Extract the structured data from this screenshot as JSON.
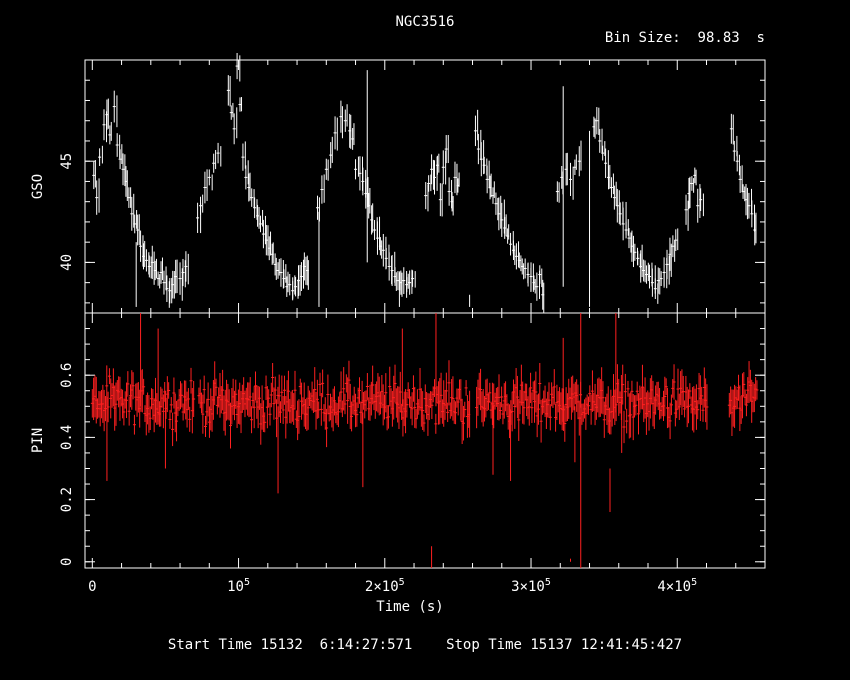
{
  "title": "NGC3516",
  "bin_size_label": "Bin Size:  98.83  s",
  "footer": "Start Time 15132  6:14:27:571    Stop Time 15137 12:41:45:427",
  "colors": {
    "background": "#000000",
    "axes": "#ffffff",
    "gso_series": "#ffffff",
    "pin_series": "#ff2020"
  },
  "chart_data": [
    {
      "type": "scatter",
      "ylabel": "GSO",
      "xlabel": "",
      "xlim": [
        -5000,
        460000
      ],
      "ylim": [
        37.5,
        50
      ],
      "yticks": [
        40,
        45
      ],
      "ytick_labels": [
        "40",
        "45"
      ],
      "grid": false,
      "error_bars": true,
      "series": [
        {
          "color": "#ffffff",
          "points": [
            [
              1000,
              44.3
            ],
            [
              3000,
              43.2
            ],
            [
              5000,
              45.2
            ],
            [
              8000,
              46.8
            ],
            [
              10000,
              47.3
            ],
            [
              12000,
              46.3
            ],
            [
              15000,
              47.7
            ],
            [
              17000,
              45.8
            ],
            [
              19000,
              45.1
            ],
            [
              21000,
              44.6
            ],
            [
              23000,
              44.0
            ],
            [
              25000,
              43.2
            ],
            [
              27000,
              42.4
            ],
            [
              29000,
              41.9
            ],
            [
              31000,
              41.6
            ],
            [
              33000,
              40.8
            ],
            [
              35000,
              40.3
            ],
            [
              37000,
              40.1
            ],
            [
              39000,
              39.8
            ],
            [
              41000,
              40.0
            ],
            [
              43000,
              39.6
            ],
            [
              45000,
              39.2
            ],
            [
              47000,
              39.5
            ],
            [
              49000,
              39.0
            ],
            [
              51000,
              38.7
            ],
            [
              53000,
              38.6
            ],
            [
              55000,
              38.9
            ],
            [
              57000,
              39.3
            ],
            [
              60000,
              39.2
            ],
            [
              62000,
              39.5
            ],
            [
              64000,
              39.8
            ],
            [
              72000,
              42.2
            ],
            [
              74000,
              42.8
            ],
            [
              77000,
              43.7
            ],
            [
              80000,
              44.2
            ],
            [
              83000,
              44.9
            ],
            [
              86000,
              45.4
            ],
            [
              93000,
              48.5
            ],
            [
              95000,
              47.4
            ],
            [
              97000,
              46.6
            ],
            [
              99000,
              49.7
            ],
            [
              101000,
              47.8
            ],
            [
              103000,
              45.2
            ],
            [
              105000,
              44.2
            ],
            [
              107000,
              43.7
            ],
            [
              109000,
              43.2
            ],
            [
              111000,
              42.7
            ],
            [
              113000,
              42.3
            ],
            [
              115000,
              41.9
            ],
            [
              117000,
              41.4
            ],
            [
              119000,
              41.1
            ],
            [
              121000,
              40.7
            ],
            [
              123000,
              40.4
            ],
            [
              125000,
              39.9
            ],
            [
              127000,
              39.6
            ],
            [
              129000,
              39.5
            ],
            [
              131000,
              39.2
            ],
            [
              133000,
              38.8
            ],
            [
              135000,
              38.9
            ],
            [
              137000,
              38.6
            ],
            [
              139000,
              38.8
            ],
            [
              141000,
              39.1
            ],
            [
              143000,
              39.3
            ],
            [
              145000,
              39.8
            ],
            [
              147000,
              39.6
            ],
            [
              154000,
              42.7
            ],
            [
              157000,
              43.6
            ],
            [
              160000,
              44.6
            ],
            [
              163000,
              45.3
            ],
            [
              166000,
              46.4
            ],
            [
              170000,
              47.2
            ],
            [
              173000,
              47.0
            ],
            [
              176000,
              46.5
            ],
            [
              178000,
              46.1
            ],
            [
              180000,
              44.6
            ],
            [
              183000,
              44.4
            ],
            [
              185000,
              44.0
            ],
            [
              187000,
              43.4
            ],
            [
              189000,
              42.8
            ],
            [
              191000,
              42.1
            ],
            [
              193000,
              41.6
            ],
            [
              195000,
              41.2
            ],
            [
              197000,
              40.8
            ],
            [
              199000,
              40.6
            ],
            [
              201000,
              40.2
            ],
            [
              203000,
              39.8
            ],
            [
              205000,
              39.6
            ],
            [
              207000,
              39.3
            ],
            [
              209000,
              39.1
            ],
            [
              211000,
              39.0
            ],
            [
              213000,
              39.1
            ],
            [
              215000,
              38.9
            ],
            [
              217000,
              39.0
            ],
            [
              219000,
              39.2
            ],
            [
              228000,
              43.3
            ],
            [
              230000,
              43.9
            ],
            [
              232000,
              44.6
            ],
            [
              234000,
              44.2
            ],
            [
              236000,
              44.8
            ],
            [
              238000,
              43.1
            ],
            [
              240000,
              44.7
            ],
            [
              242000,
              45.6
            ],
            [
              244000,
              43.5
            ],
            [
              246000,
              43.0
            ],
            [
              248000,
              44.2
            ],
            [
              250000,
              43.8
            ],
            [
              262000,
              46.5
            ],
            [
              264000,
              45.6
            ],
            [
              266000,
              45.1
            ],
            [
              268000,
              44.8
            ],
            [
              270000,
              44.1
            ],
            [
              272000,
              43.7
            ],
            [
              274000,
              43.3
            ],
            [
              276000,
              42.9
            ],
            [
              278000,
              42.4
            ],
            [
              280000,
              42.1
            ],
            [
              282000,
              41.7
            ],
            [
              284000,
              41.3
            ],
            [
              286000,
              40.9
            ],
            [
              288000,
              40.6
            ],
            [
              290000,
              40.3
            ],
            [
              292000,
              40.1
            ],
            [
              294000,
              39.8
            ],
            [
              296000,
              39.7
            ],
            [
              298000,
              39.4
            ],
            [
              300000,
              39.3
            ],
            [
              302000,
              39.0
            ],
            [
              304000,
              38.8
            ],
            [
              306000,
              39.4
            ],
            [
              308000,
              38.4
            ],
            [
              318000,
              43.5
            ],
            [
              321000,
              44.2
            ],
            [
              324000,
              44.6
            ],
            [
              327000,
              44.1
            ],
            [
              330000,
              44.7
            ],
            [
              333000,
              45.0
            ],
            [
              343000,
              46.7
            ],
            [
              345000,
              47.0
            ],
            [
              347000,
              46.0
            ],
            [
              349000,
              45.4
            ],
            [
              351000,
              44.9
            ],
            [
              353000,
              44.2
            ],
            [
              355000,
              43.7
            ],
            [
              357000,
              43.2
            ],
            [
              359000,
              42.8
            ],
            [
              361000,
              42.4
            ],
            [
              363000,
              41.9
            ],
            [
              365000,
              41.6
            ],
            [
              367000,
              41.2
            ],
            [
              369000,
              40.8
            ],
            [
              371000,
              40.5
            ],
            [
              373000,
              40.2
            ],
            [
              375000,
              39.8
            ],
            [
              377000,
              39.6
            ],
            [
              379000,
              39.4
            ],
            [
              381000,
              39.3
            ],
            [
              383000,
              39.0
            ],
            [
              385000,
              38.7
            ],
            [
              387000,
              39.1
            ],
            [
              389000,
              39.2
            ],
            [
              391000,
              39.5
            ],
            [
              393000,
              39.9
            ],
            [
              395000,
              40.4
            ],
            [
              397000,
              40.8
            ],
            [
              399000,
              41.1
            ],
            [
              406000,
              42.6
            ],
            [
              408000,
              43.4
            ],
            [
              410000,
              43.9
            ],
            [
              412000,
              44.3
            ],
            [
              414000,
              42.8
            ],
            [
              416000,
              43.1
            ],
            [
              437000,
              46.6
            ],
            [
              439000,
              45.5
            ],
            [
              441000,
              45.0
            ],
            [
              443000,
              44.1
            ],
            [
              445000,
              43.5
            ],
            [
              447000,
              43.1
            ],
            [
              449000,
              42.8
            ],
            [
              451000,
              42.4
            ],
            [
              453000,
              41.6
            ]
          ]
        }
      ],
      "spikes": [
        [
          30000,
          41.0,
          37.8
        ],
        [
          155000,
          42.5,
          37.8
        ],
        [
          188000,
          49.5,
          40.0
        ],
        [
          210000,
          39.5,
          37.8
        ],
        [
          258000,
          38.4,
          37.8
        ],
        [
          322000,
          48.7,
          38.8
        ],
        [
          340000,
          46.5,
          37.8
        ]
      ]
    },
    {
      "type": "scatter",
      "ylabel": "PIN",
      "xlabel": "Time (s)",
      "xlim": [
        -5000,
        460000
      ],
      "ylim": [
        -0.02,
        0.8
      ],
      "yticks": [
        0,
        0.2,
        0.4,
        0.6
      ],
      "ytick_labels": [
        "0",
        "0.2",
        "0.4",
        "0.6"
      ],
      "xticks": [
        0,
        100000,
        200000,
        300000,
        400000
      ],
      "grid": false,
      "error_bars": true,
      "series": [
        {
          "color": "#ff2020",
          "mean": 0.51,
          "spread": 0.045,
          "errbar": 0.05
        }
      ],
      "gaps": [
        [
          70000,
          72000
        ],
        [
          258000,
          262000
        ],
        [
          421000,
          435000
        ]
      ],
      "spikes": [
        [
          10000,
          0.53,
          0.26
        ],
        [
          33000,
          0.8,
          0.5
        ],
        [
          45000,
          0.75,
          0.45
        ],
        [
          50000,
          0.55,
          0.3
        ],
        [
          127000,
          0.5,
          0.22
        ],
        [
          185000,
          0.48,
          0.24
        ],
        [
          212000,
          0.75,
          0.5
        ],
        [
          232000,
          0.05,
          -0.02
        ],
        [
          235000,
          0.8,
          0.5
        ],
        [
          258000,
          0.55,
          0.4
        ],
        [
          274000,
          0.5,
          0.28
        ],
        [
          286000,
          0.49,
          0.26
        ],
        [
          322000,
          0.72,
          0.45
        ],
        [
          327000,
          0.01,
          0.0
        ],
        [
          330000,
          0.5,
          0.32
        ],
        [
          334000,
          0.8,
          -0.02
        ],
        [
          354000,
          0.3,
          0.16
        ],
        [
          358000,
          0.8,
          0.48
        ],
        [
          362000,
          0.52,
          0.35
        ]
      ]
    }
  ],
  "axis_labels": {
    "x_tick_labels": [
      "0",
      "10",
      "2×10",
      "3×10",
      "4×10"
    ],
    "x_tick_exponent": "5"
  }
}
